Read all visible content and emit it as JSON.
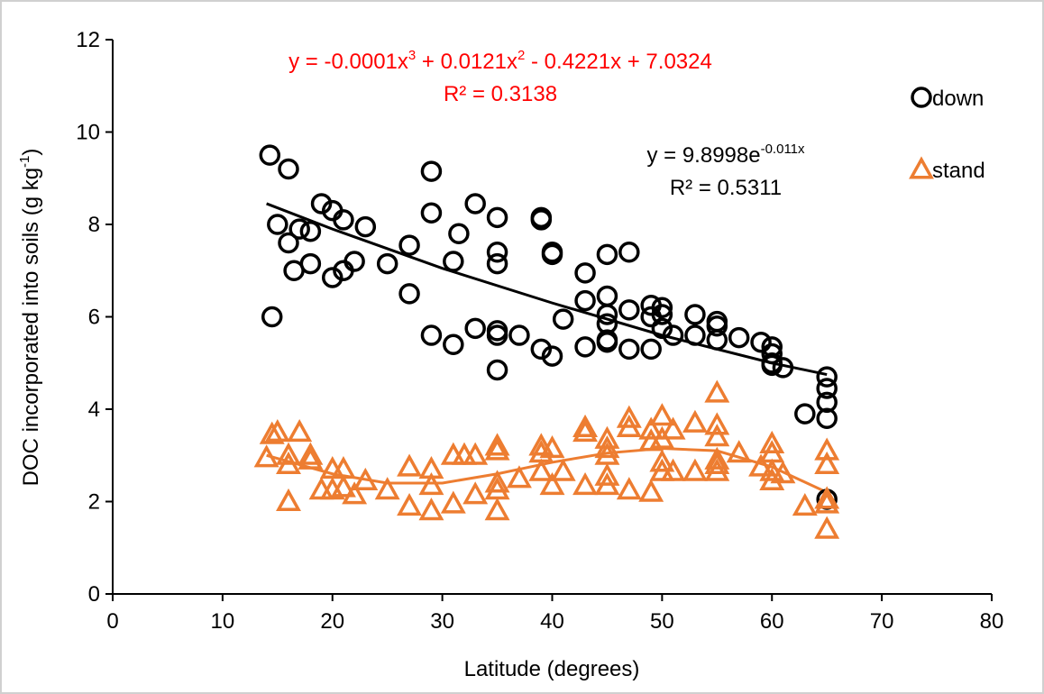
{
  "chart_data": {
    "type": "scatter",
    "x_label": "Latitude (degrees)",
    "y_label": [
      "DOC incorporated into soils (g kg",
      "-1",
      ")"
    ],
    "xlim": [
      0,
      80
    ],
    "xticks": [
      0,
      10,
      20,
      30,
      40,
      50,
      60,
      70,
      80
    ],
    "ylim": [
      0,
      12
    ],
    "yticks": [
      0,
      2,
      4,
      6,
      8,
      10,
      12
    ],
    "grid": false,
    "legend": "top-right",
    "series": [
      {
        "name": "down",
        "color": "#000000",
        "marker": "circle",
        "x": [
          14.3,
          16,
          15,
          16,
          16.5,
          17,
          18,
          18,
          19,
          20,
          21,
          20,
          21,
          22,
          23,
          14.5,
          25,
          27,
          27,
          29,
          29,
          29,
          31,
          31,
          31.5,
          33,
          33,
          35,
          35,
          35,
          35,
          35,
          35,
          37,
          39,
          39,
          39,
          40,
          40,
          40,
          41,
          43,
          43,
          43,
          45,
          45,
          45,
          45,
          45,
          45,
          47,
          47,
          47,
          49,
          49,
          49,
          50,
          50,
          50,
          51,
          53,
          53,
          55,
          55,
          55,
          57,
          59,
          60,
          60,
          60,
          60,
          61,
          63,
          65,
          65,
          65,
          65,
          65
        ],
        "values": [
          9.5,
          9.2,
          8.0,
          7.6,
          7.0,
          7.9,
          7.85,
          7.15,
          8.45,
          8.3,
          8.1,
          6.85,
          7.0,
          7.2,
          7.95,
          6.0,
          7.15,
          7.55,
          6.5,
          9.15,
          8.25,
          5.6,
          7.2,
          5.4,
          7.8,
          8.45,
          5.75,
          8.15,
          7.4,
          7.15,
          5.7,
          5.6,
          4.85,
          5.6,
          8.15,
          8.1,
          5.3,
          7.4,
          7.35,
          5.15,
          5.95,
          6.95,
          6.35,
          5.35,
          7.35,
          6.45,
          6.05,
          5.85,
          5.5,
          5.45,
          7.4,
          6.15,
          5.3,
          6.25,
          6.0,
          5.3,
          6.2,
          6.05,
          5.75,
          5.6,
          6.05,
          5.6,
          5.9,
          5.8,
          5.5,
          5.55,
          5.45,
          5.35,
          5.2,
          5.0,
          4.95,
          4.9,
          3.9,
          4.7,
          4.45,
          4.15,
          3.8,
          2.05
        ]
      },
      {
        "name": "stand",
        "color": "#ed7d31",
        "marker": "triangle",
        "x": [
          14,
          14.5,
          15,
          16,
          16,
          16,
          17,
          18,
          18,
          19,
          20,
          20,
          21,
          21,
          22,
          23,
          25,
          27,
          27,
          29,
          29,
          29,
          31,
          31,
          32,
          33,
          33,
          35,
          35,
          35,
          35,
          35,
          37,
          39,
          39,
          39,
          40,
          40,
          41,
          43,
          43,
          43,
          45,
          45,
          45,
          45,
          45,
          47,
          47,
          47,
          49,
          49,
          49,
          50,
          50,
          50,
          50,
          51,
          51,
          53,
          53,
          55,
          55,
          55,
          55,
          55,
          55,
          57,
          59,
          60,
          60,
          60,
          60,
          61,
          63,
          65,
          65,
          65,
          65,
          65
        ],
        "values": [
          2.95,
          3.45,
          3.5,
          2.8,
          2.0,
          3.0,
          3.5,
          3.0,
          2.9,
          2.25,
          2.7,
          2.25,
          2.7,
          2.3,
          2.15,
          2.45,
          2.25,
          2.75,
          1.9,
          2.7,
          2.35,
          1.8,
          3.0,
          1.95,
          3.0,
          2.15,
          3.0,
          3.1,
          2.4,
          2.25,
          1.8,
          3.2,
          2.5,
          3.2,
          3.05,
          2.65,
          3.15,
          2.35,
          2.65,
          3.5,
          3.6,
          2.35,
          3.35,
          3.15,
          3.0,
          2.55,
          2.35,
          3.8,
          3.6,
          2.25,
          3.3,
          3.55,
          2.2,
          3.85,
          3.35,
          2.85,
          2.65,
          3.55,
          2.65,
          3.7,
          2.65,
          4.35,
          3.65,
          3.4,
          2.9,
          2.8,
          2.65,
          3.05,
          2.75,
          3.25,
          3.05,
          2.65,
          2.45,
          2.6,
          1.9,
          3.1,
          2.8,
          2.05,
          1.95,
          1.4
        ]
      }
    ],
    "trendlines": [
      {
        "color": "#000000",
        "x": [
          14,
          20,
          30,
          40,
          50,
          60,
          65
        ],
        "values": [
          8.45,
          7.9,
          7.05,
          6.3,
          5.6,
          5.0,
          4.75
        ],
        "equation": [
          "y = 9.8998e",
          "-0.011x"
        ],
        "r2": "R² = 0.5311"
      },
      {
        "color": "#ed7d31",
        "x": [
          14,
          20,
          25,
          30,
          35,
          40,
          45,
          50,
          55,
          60,
          65
        ],
        "values": [
          3.0,
          2.6,
          2.4,
          2.4,
          2.6,
          2.85,
          3.05,
          3.15,
          3.1,
          2.75,
          2.2
        ],
        "equation": [
          "y = -0.0001x",
          "3",
          " + 0.0121x",
          "2",
          " - 0.4221x + 7.0324"
        ],
        "r2": "R² = 0.3138",
        "text_color": "#ff0000"
      }
    ]
  }
}
